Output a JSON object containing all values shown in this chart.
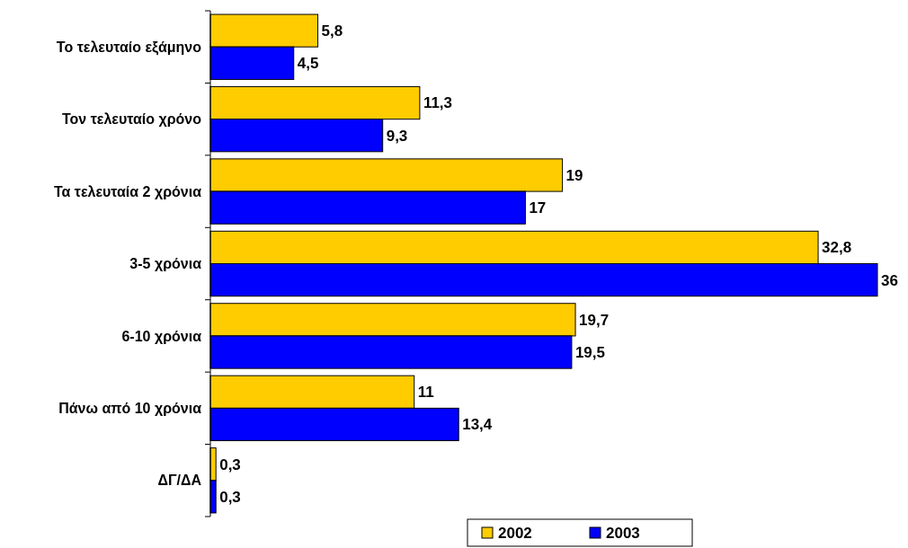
{
  "chart_data": {
    "type": "bar",
    "orientation": "horizontal",
    "categories": [
      "Το τελευταίο εξάμηνο",
      "Τον τελευταίο χρόνο",
      "Τα τελευταία 2 χρόνια",
      "3-5 χρόνια",
      "6-10 χρόνια",
      "Πάνω από 10 χρόνια",
      "ΔΓ/ΔΑ"
    ],
    "series": [
      {
        "name": "2002",
        "color": "#ffcc00",
        "values": [
          5.8,
          11.3,
          19,
          32.8,
          19.7,
          11,
          0.3
        ],
        "value_labels": [
          "5,8",
          "11,3",
          "19",
          "32,8",
          "19,7",
          "11",
          "0,3"
        ]
      },
      {
        "name": "2003",
        "color": "#0000ff",
        "values": [
          4.5,
          9.3,
          17,
          36,
          19.5,
          13.4,
          0.3
        ],
        "value_labels": [
          "4,5",
          "9,3",
          "17",
          "36",
          "19,5",
          "13,4",
          "0,3"
        ]
      }
    ],
    "legend": "bottom"
  }
}
